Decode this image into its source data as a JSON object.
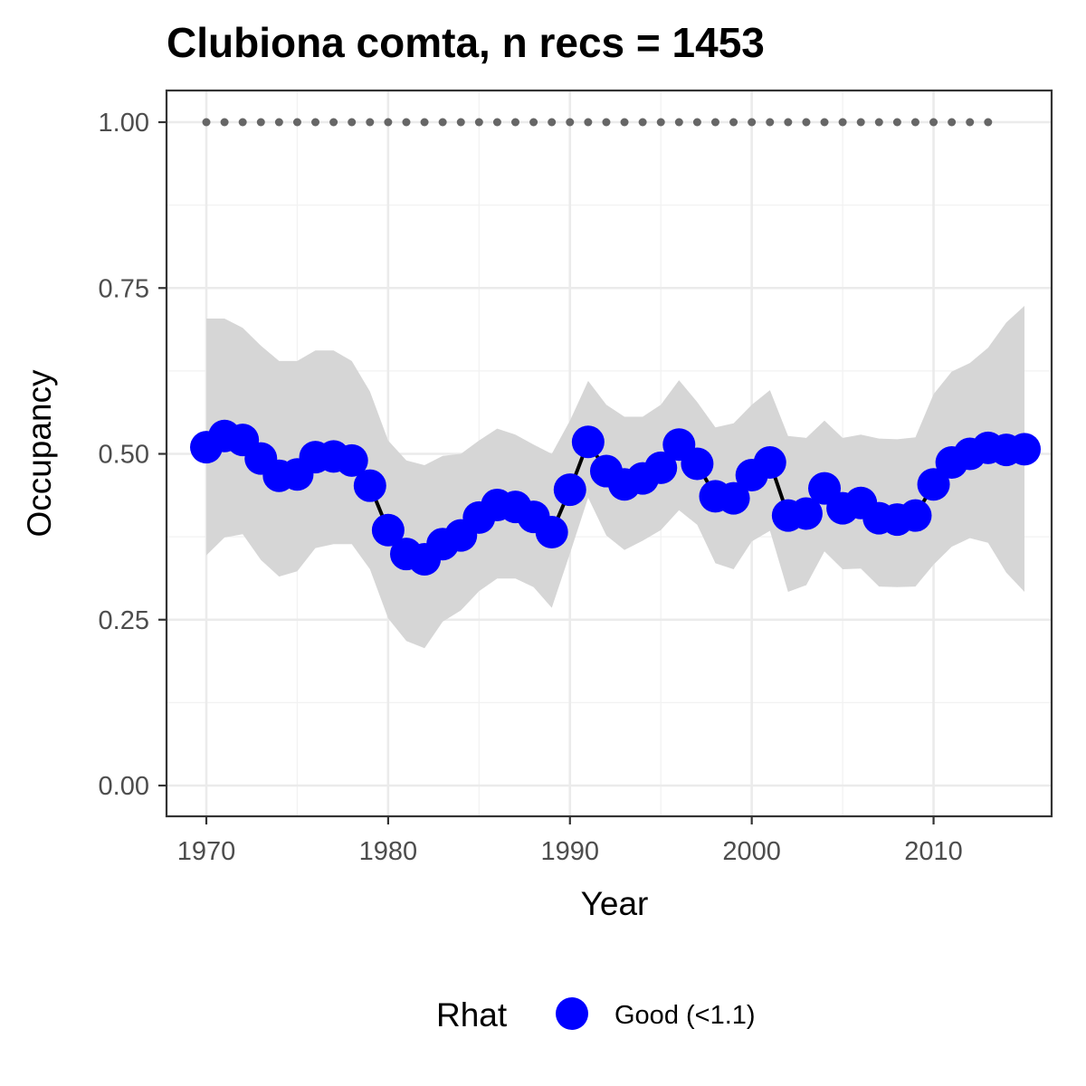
{
  "chart_data": {
    "type": "line",
    "title": "Clubiona comta, n recs = 1453",
    "xlabel": "Year",
    "ylabel": "Occupancy",
    "xlim": [
      1967.8,
      1917.2
    ],
    "ylim": [
      -0.045,
      1.045
    ],
    "x_ticks": [
      1970,
      1980,
      1990,
      2000,
      2010
    ],
    "x_tick_labels": [
      "1970",
      "1980",
      "1990",
      "2000",
      "2010"
    ],
    "y_ticks": [
      0.0,
      0.25,
      0.5,
      0.75,
      1.0
    ],
    "y_tick_labels": [
      "0.00",
      "0.25",
      "0.50",
      "0.75",
      "1.00"
    ],
    "grid": true,
    "x": [
      1970,
      1971,
      1972,
      1973,
      1974,
      1975,
      1976,
      1977,
      1978,
      1979,
      1980,
      1981,
      1982,
      1983,
      1984,
      1985,
      1986,
      1987,
      1988,
      1989,
      1990,
      1991,
      1992,
      1993,
      1994,
      1995,
      1996,
      1997,
      1998,
      1999,
      2000,
      2001,
      2002,
      2003,
      2004,
      2005,
      2006,
      2007,
      2008,
      2009,
      2010,
      2011,
      2012,
      2013,
      2014,
      2015
    ],
    "series": [
      {
        "type": "line+points",
        "values": [
          0.51,
          0.527,
          0.521,
          0.493,
          0.467,
          0.469,
          0.495,
          0.496,
          0.49,
          0.452,
          0.385,
          0.349,
          0.341,
          0.364,
          0.377,
          0.404,
          0.423,
          0.42,
          0.405,
          0.382,
          0.446,
          0.518,
          0.474,
          0.454,
          0.463,
          0.479,
          0.514,
          0.485,
          0.436,
          0.433,
          0.468,
          0.487,
          0.407,
          0.41,
          0.448,
          0.418,
          0.426,
          0.403,
          0.401,
          0.407,
          0.454,
          0.487,
          0.5,
          0.509,
          0.506,
          0.507
        ],
        "color": "#0000ff",
        "line_color": "#000000"
      }
    ],
    "ribbon": {
      "lower": [
        0.347,
        0.374,
        0.379,
        0.34,
        0.315,
        0.323,
        0.358,
        0.364,
        0.364,
        0.326,
        0.252,
        0.218,
        0.207,
        0.247,
        0.264,
        0.293,
        0.312,
        0.312,
        0.299,
        0.268,
        0.35,
        0.434,
        0.377,
        0.355,
        0.369,
        0.385,
        0.415,
        0.393,
        0.335,
        0.326,
        0.368,
        0.384,
        0.292,
        0.302,
        0.353,
        0.326,
        0.327,
        0.3,
        0.299,
        0.3,
        0.333,
        0.36,
        0.373,
        0.366,
        0.321,
        0.292
      ],
      "upper": [
        0.704,
        0.704,
        0.69,
        0.663,
        0.64,
        0.64,
        0.656,
        0.656,
        0.64,
        0.594,
        0.52,
        0.49,
        0.483,
        0.497,
        0.5,
        0.52,
        0.538,
        0.529,
        0.514,
        0.5,
        0.55,
        0.61,
        0.574,
        0.556,
        0.556,
        0.574,
        0.611,
        0.578,
        0.54,
        0.546,
        0.574,
        0.596,
        0.527,
        0.524,
        0.55,
        0.524,
        0.529,
        0.523,
        0.522,
        0.525,
        0.59,
        0.624,
        0.637,
        0.66,
        0.698,
        0.723
      ],
      "color": "#d6d6d6"
    },
    "reference": {
      "x": [
        1970,
        1971,
        1972,
        1973,
        1974,
        1975,
        1976,
        1977,
        1978,
        1979,
        1980,
        1981,
        1982,
        1983,
        1984,
        1985,
        1986,
        1987,
        1988,
        1989,
        1990,
        1991,
        1992,
        1993,
        1994,
        1995,
        1996,
        1997,
        1998,
        1999,
        2000,
        2001,
        2002,
        2003,
        2004,
        2005,
        2006,
        2007,
        2008,
        2009,
        2010,
        2011,
        2012,
        2013
      ],
      "value": 1.0,
      "color": "#666666"
    },
    "legend": {
      "title": "Rhat",
      "entries": [
        {
          "label": "Good (<1.1)",
          "color": "#0000ff"
        }
      ],
      "position": "bottom"
    }
  }
}
